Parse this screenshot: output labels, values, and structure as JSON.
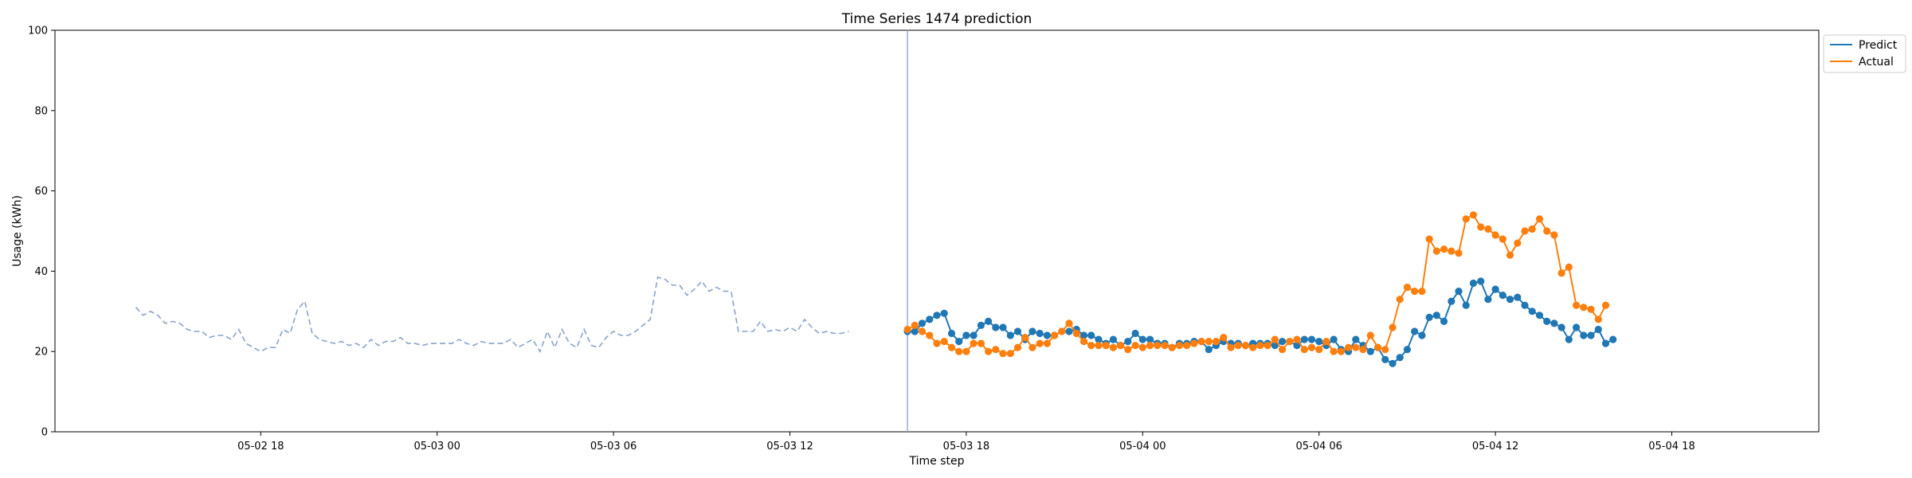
{
  "chart_data": {
    "type": "line",
    "title": "Time Series 1474 prediction",
    "xlabel": "Time step",
    "ylabel": "Usage (kWh)",
    "ylim": [
      0,
      100
    ],
    "yticks": [
      0,
      20,
      40,
      60,
      80,
      100
    ],
    "xlim_hours": [
      11.0,
      71.0
    ],
    "xticks": [
      {
        "label": "05-02 18",
        "hour": 18
      },
      {
        "label": "05-03 00",
        "hour": 24
      },
      {
        "label": "05-03 06",
        "hour": 30
      },
      {
        "label": "05-03 12",
        "hour": 36
      },
      {
        "label": "05-03 18",
        "hour": 42
      },
      {
        "label": "05-04 00",
        "hour": 48
      },
      {
        "label": "05-04 06",
        "hour": 54
      },
      {
        "label": "05-04 12",
        "hour": 60
      },
      {
        "label": "05-04 18",
        "hour": 66
      }
    ],
    "step_hours": 0.25,
    "history": {
      "start_hour": 13.75,
      "color": "#8aa3c8",
      "values": [
        31,
        29,
        30,
        29,
        27,
        27.5,
        27,
        25.5,
        25,
        25,
        23.5,
        24,
        24,
        23,
        25.5,
        22,
        21,
        20,
        21,
        21,
        25.5,
        24.5,
        30.5,
        32.5,
        24.5,
        23,
        22.5,
        22,
        22.5,
        21.5,
        22,
        21,
        23,
        21.5,
        22.5,
        22.5,
        23.5,
        22,
        22,
        21.5,
        22,
        22,
        22,
        22,
        23,
        22,
        21.5,
        22.5,
        22,
        22,
        22,
        23,
        21,
        22,
        23,
        20,
        25,
        21,
        25.5,
        22,
        21,
        25.5,
        21.5,
        21,
        23.5,
        25,
        24,
        24,
        25,
        26.5,
        28,
        38.5,
        38,
        36.5,
        36.5,
        34,
        35.5,
        37.5,
        35,
        36,
        35,
        35,
        25,
        25,
        25,
        27.5,
        25,
        25.5,
        25,
        26,
        25,
        28,
        26,
        24.5,
        25,
        24.5,
        24.5,
        25
      ]
    },
    "forecast_start_hour": 40.0,
    "series": [
      {
        "name": "Predict",
        "color": "#1f77b4",
        "start_hour": 40.0,
        "values": [
          25,
          25,
          27,
          28,
          29,
          29.5,
          24.5,
          22.5,
          24,
          24,
          26.5,
          27.5,
          26,
          26,
          24,
          25,
          23,
          25,
          24.5,
          24,
          24,
          25,
          25,
          25.5,
          24,
          24,
          23,
          22,
          23,
          21.5,
          22.5,
          24.5,
          23,
          23,
          22,
          22,
          21,
          22,
          22,
          22.5,
          22.5,
          20.5,
          21.5,
          22.5,
          22,
          22,
          21.5,
          22,
          22,
          22,
          21.5,
          22.5,
          22.5,
          21.5,
          23,
          23,
          22.5,
          21.5,
          23,
          20.5,
          20,
          23,
          21.5,
          20,
          21,
          18,
          17,
          18.5,
          20.5,
          25,
          24,
          28.5,
          29,
          27.5,
          32.5,
          35,
          31.5,
          37,
          37.5,
          33,
          35.5,
          34,
          33,
          33.5,
          31.5,
          30,
          29,
          27.5,
          27,
          26,
          23,
          26,
          24,
          24,
          25.5,
          22,
          23
        ]
      },
      {
        "name": "Actual",
        "color": "#ff7f0e",
        "start_hour": 40.0,
        "values": [
          25.5,
          26.5,
          25,
          24,
          22,
          22.5,
          21,
          20,
          20,
          22,
          22,
          20,
          20.5,
          19.5,
          19.5,
          21,
          23.5,
          21,
          22,
          22,
          24,
          25,
          27,
          24.5,
          22.5,
          21.5,
          21.5,
          21.5,
          21,
          21.5,
          20.5,
          21.5,
          21,
          21.5,
          21.5,
          21.5,
          21,
          21.5,
          21.5,
          22,
          22.5,
          22.5,
          22.5,
          23.5,
          21,
          21.5,
          21.5,
          21,
          21.5,
          21.5,
          23,
          20.5,
          22.5,
          23,
          20.5,
          21,
          20.5,
          22.5,
          20,
          20,
          21,
          21,
          20.5,
          24,
          21,
          20.5,
          26,
          33,
          36,
          35,
          35,
          48,
          45,
          45.5,
          45,
          44.5,
          53,
          54,
          51,
          50.5,
          49,
          48,
          44,
          47,
          50,
          50.5,
          53,
          50,
          49,
          39.5,
          41,
          31.5,
          31,
          30.5,
          28,
          31.5
        ]
      }
    ],
    "legend": {
      "placement": "top-right",
      "entries": [
        "Predict",
        "Actual"
      ]
    },
    "grid": false
  }
}
